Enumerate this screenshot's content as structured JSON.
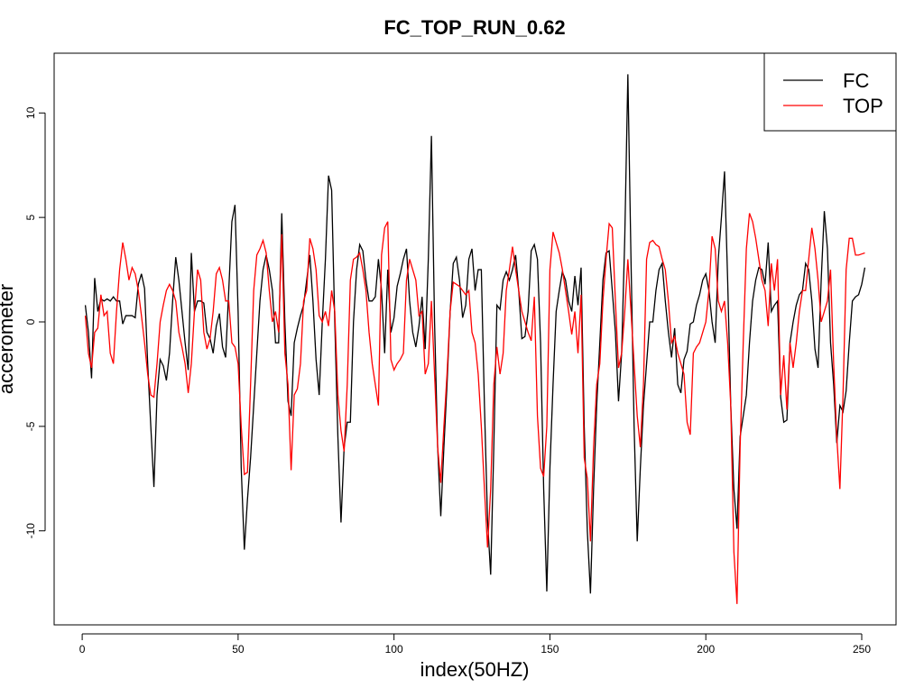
{
  "chart_data": {
    "type": "line",
    "title": "FC_TOP_RUN_0.62",
    "x_label": "index(50HZ)",
    "y_label": "accerometer",
    "x": [
      1,
      2,
      3,
      4,
      5,
      6,
      7,
      8,
      9,
      10,
      11,
      12,
      13,
      14,
      15,
      16,
      17,
      18,
      19,
      20,
      21,
      22,
      23,
      24,
      25,
      26,
      27,
      28,
      29,
      30,
      31,
      32,
      33,
      34,
      35,
      36,
      37,
      38,
      39,
      40,
      41,
      42,
      43,
      44,
      45,
      46,
      47,
      48,
      49,
      50,
      51,
      52,
      53,
      54,
      55,
      56,
      57,
      58,
      59,
      60,
      61,
      62,
      63,
      64,
      65,
      66,
      67,
      68,
      69,
      70,
      71,
      72,
      73,
      74,
      75,
      76,
      77,
      78,
      79,
      80,
      81,
      82,
      83,
      84,
      85,
      86,
      87,
      88,
      89,
      90,
      91,
      92,
      93,
      94,
      95,
      96,
      97,
      98,
      99,
      100,
      101,
      102,
      103,
      104,
      105,
      106,
      107,
      108,
      109,
      110,
      111,
      112,
      113,
      114,
      115,
      116,
      117,
      118,
      119,
      120,
      121,
      122,
      123,
      124,
      125,
      126,
      127,
      128,
      129,
      130,
      131,
      132,
      133,
      134,
      135,
      136,
      137,
      138,
      139,
      140,
      141,
      142,
      143,
      144,
      145,
      146,
      147,
      148,
      149,
      150,
      151,
      152,
      153,
      154,
      155,
      156,
      157,
      158,
      159,
      160,
      161,
      162,
      163,
      164,
      165,
      166,
      167,
      168,
      169,
      170,
      171,
      172,
      173,
      174,
      175,
      176,
      177,
      178,
      179,
      180,
      181,
      182,
      183,
      184,
      185,
      186,
      187,
      188,
      189,
      190,
      191,
      192,
      193,
      194,
      195,
      196,
      197,
      198,
      199,
      200,
      201,
      202,
      203,
      204,
      205,
      206,
      207,
      208,
      209,
      210,
      211,
      212,
      213,
      214,
      215,
      216,
      217,
      218,
      219,
      220,
      221,
      222,
      223,
      224,
      225,
      226,
      227,
      228,
      229,
      230,
      231,
      232,
      233,
      234,
      235,
      236,
      237,
      238,
      239,
      240,
      241,
      242,
      243,
      244,
      245,
      246,
      247,
      248,
      249,
      250,
      251
    ],
    "series": [
      {
        "name": "FC",
        "color": "#000000",
        "values": [
          0.8,
          -0.5,
          -2.7,
          2.1,
          0.5,
          1.1,
          1.0,
          1.1,
          1.0,
          1.2,
          1.0,
          1.0,
          -0.1,
          0.3,
          0.3,
          0.3,
          0.2,
          1.8,
          2.3,
          1.6,
          -2.0,
          -5.0,
          -7.9,
          -3.5,
          -1.8,
          -2.1,
          -2.8,
          -1.5,
          1.0,
          3.1,
          2.0,
          0.5,
          -1.0,
          -2.3,
          3.3,
          0.5,
          1.0,
          1.0,
          0.9,
          -0.5,
          -0.8,
          -1.5,
          -0.2,
          0.4,
          -1.2,
          -1.7,
          1.5,
          4.8,
          5.6,
          0.5,
          -7.0,
          -10.9,
          -8.5,
          -6.5,
          -4.0,
          -1.5,
          1.0,
          2.5,
          3.2,
          2.5,
          1.5,
          -1.0,
          -1.0,
          5.2,
          0.0,
          -3.8,
          -4.5,
          -1.0,
          -0.3,
          0.3,
          0.8,
          2.0,
          3.2,
          1.0,
          -1.8,
          -3.5,
          0.0,
          3.0,
          7.0,
          6.3,
          0.0,
          -5.5,
          -9.6,
          -6.0,
          -4.8,
          -4.8,
          0.0,
          2.5,
          3.7,
          3.4,
          2.0,
          1.0,
          1.0,
          1.2,
          3.0,
          1.5,
          -1.5,
          2.5,
          -0.5,
          0.2,
          1.7,
          2.3,
          3.0,
          3.5,
          1.0,
          -0.5,
          -1.2,
          -0.2,
          1.2,
          -1.3,
          3.0,
          8.9,
          0.0,
          -6.0,
          -9.3,
          -6.0,
          -3.0,
          0.5,
          2.8,
          3.1,
          2.0,
          0.2,
          0.8,
          3.0,
          3.5,
          1.5,
          2.5,
          2.5,
          -4.0,
          -9.5,
          -12.1,
          -6.0,
          0.8,
          0.6,
          2.0,
          2.4,
          2.0,
          2.5,
          3.2,
          1.5,
          -0.8,
          -0.7,
          0.5,
          3.4,
          3.7,
          3.0,
          -1.0,
          -8.0,
          -12.9,
          -7.0,
          -3.0,
          0.5,
          1.5,
          2.4,
          2.0,
          1.0,
          0.5,
          2.2,
          0.8,
          2.6,
          -5.0,
          -10.0,
          -13.0,
          -8.0,
          -4.0,
          -1.0,
          2.0,
          3.3,
          3.4,
          1.5,
          -0.5,
          -3.8,
          -1.5,
          4.0,
          11.85,
          3.0,
          -5.0,
          -10.5,
          -7.0,
          -4.0,
          -2.0,
          0.0,
          0.0,
          1.5,
          2.5,
          2.8,
          1.0,
          -0.5,
          -1.7,
          -0.3,
          -3.0,
          -3.4,
          -1.8,
          -1.4,
          -0.1,
          0.0,
          0.8,
          1.3,
          2.0,
          2.3,
          1.5,
          0.0,
          -1.0,
          3.0,
          5.0,
          7.2,
          2.0,
          -4.0,
          -8.0,
          -9.9,
          -5.5,
          -4.5,
          -3.5,
          -1.0,
          1.0,
          2.0,
          2.6,
          2.5,
          1.8,
          3.8,
          0.5,
          0.8,
          1.0,
          -3.6,
          -4.8,
          -4.7,
          -1.0,
          0.0,
          0.8,
          1.3,
          1.5,
          2.8,
          2.5,
          1.0,
          -1.3,
          -2.2,
          2.0,
          5.3,
          3.5,
          -1.0,
          -3.0,
          -5.8,
          -4.0,
          -4.3,
          -3.3,
          -1.0,
          1.0,
          1.2,
          1.3,
          1.8,
          2.6
        ]
      },
      {
        "name": "TOP",
        "color": "#ff0000",
        "values": [
          0.3,
          -1.5,
          -2.2,
          -0.5,
          -0.3,
          1.3,
          0.3,
          0.5,
          -1.5,
          -2.0,
          0.5,
          2.5,
          3.8,
          3.0,
          2.0,
          2.6,
          2.3,
          1.5,
          0.3,
          -1.0,
          -2.5,
          -3.5,
          -3.6,
          -2.0,
          0.0,
          0.8,
          1.5,
          1.8,
          1.5,
          1.0,
          -0.5,
          -1.2,
          -2.0,
          -3.4,
          -2.0,
          0.5,
          2.5,
          2.0,
          -0.5,
          -1.3,
          -0.8,
          0.5,
          2.3,
          2.6,
          2.0,
          1.0,
          1.0,
          -1.0,
          -1.2,
          -2.0,
          -5.0,
          -7.3,
          -7.2,
          -3.0,
          1.5,
          3.2,
          3.5,
          3.9,
          3.3,
          1.5,
          0.0,
          0.5,
          -0.5,
          4.2,
          -1.5,
          -3.0,
          -7.1,
          -3.5,
          -3.2,
          -2.0,
          1.0,
          1.5,
          4.0,
          3.5,
          2.5,
          0.3,
          0.0,
          0.5,
          -0.2,
          1.5,
          0.5,
          -3.5,
          -5.2,
          -6.2,
          -3.0,
          2.0,
          3.0,
          3.1,
          3.3,
          2.5,
          1.5,
          -0.5,
          -2.0,
          -3.0,
          -4.0,
          3.2,
          4.5,
          4.8,
          -1.8,
          -2.3,
          -2.0,
          -1.8,
          -1.5,
          2.0,
          3.0,
          2.5,
          2.0,
          0.3,
          0.5,
          -2.5,
          -2.0,
          1.0,
          -2.5,
          -6.0,
          -7.7,
          -5.0,
          -2.5,
          0.5,
          1.9,
          1.8,
          1.7,
          1.5,
          1.3,
          1.5,
          -0.5,
          -1.0,
          -2.5,
          -5.0,
          -8.0,
          -10.8,
          -8.0,
          -3.0,
          -1.2,
          -2.5,
          -1.5,
          1.5,
          2.5,
          3.6,
          2.5,
          1.5,
          0.5,
          0.0,
          -0.5,
          -0.9,
          1.2,
          -4.5,
          -7.0,
          -7.4,
          -5.0,
          2.5,
          4.3,
          3.8,
          3.3,
          2.5,
          1.5,
          0.5,
          -0.6,
          0.5,
          -1.5,
          1.3,
          -6.5,
          -7.5,
          -10.5,
          -6.0,
          -3.0,
          -2.0,
          1.0,
          3.0,
          4.7,
          4.5,
          1.0,
          -2.2,
          -1.5,
          0.5,
          3.0,
          0.5,
          -2.0,
          -4.5,
          -6.0,
          -3.0,
          3.0,
          3.8,
          3.9,
          3.7,
          3.6,
          3.0,
          2.5,
          1.0,
          -1.0,
          -0.7,
          -1.5,
          -2.0,
          -2.5,
          -4.8,
          -5.4,
          -1.5,
          -1.2,
          -1.0,
          -0.5,
          0.0,
          1.5,
          4.1,
          3.5,
          1.0,
          0.5,
          1.0,
          -1.0,
          -4.0,
          -11.0,
          -13.5,
          -6.0,
          -1.0,
          3.5,
          5.2,
          4.8,
          4.0,
          3.0,
          2.0,
          1.5,
          -0.2,
          2.8,
          1.5,
          3.0,
          -3.5,
          -1.6,
          -4.2,
          -1.0,
          -2.2,
          -1.0,
          0.5,
          1.5,
          1.5,
          3.0,
          4.5,
          3.5,
          2.0,
          0.0,
          0.5,
          1.0,
          2.5,
          -2.0,
          -5.5,
          -8.0,
          -3.5,
          2.5,
          4.0,
          4.0,
          3.2,
          3.2,
          3.25,
          3.3
        ]
      }
    ],
    "xlim": [
      -9,
      261
    ],
    "xticks": [
      0,
      50,
      100,
      150,
      200,
      250
    ],
    "ylim": [
      -14.5,
      12.86
    ],
    "yticks": [
      -10,
      -5,
      0,
      5,
      10
    ],
    "legend": "top-right",
    "grid": false
  }
}
